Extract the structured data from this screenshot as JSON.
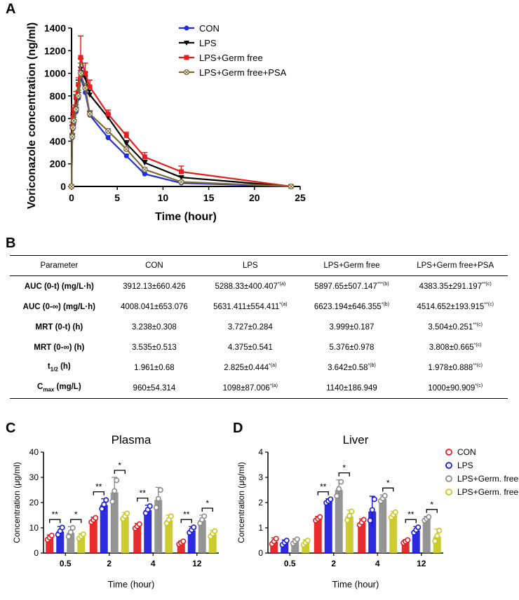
{
  "panels": {
    "a": "A",
    "b": "B",
    "c": "C",
    "d": "D"
  },
  "chart_data": [
    {
      "type": "line",
      "panel": "A",
      "xlabel": "Time (hour)",
      "ylabel": "Voriconazole concentration (ng/ml)",
      "xlim": [
        0,
        25
      ],
      "ylim": [
        0,
        1400
      ],
      "xticks": [
        "0",
        "5",
        "10",
        "15",
        "20",
        "25"
      ],
      "yticks": [
        "0",
        "200",
        "400",
        "600",
        "800",
        "1000",
        "1200",
        "1400"
      ],
      "x": [
        0,
        0.083,
        0.167,
        0.25,
        0.5,
        0.75,
        1,
        1.5,
        2,
        4,
        6,
        8,
        12,
        24
      ],
      "series": [
        {
          "name": "CON",
          "color": "#1f2ee0",
          "marker": "circle",
          "values": [
            0,
            430,
            510,
            560,
            660,
            780,
            970,
            830,
            630,
            430,
            270,
            110,
            30,
            0
          ],
          "err_up": [
            0,
            30,
            30,
            30,
            40,
            50,
            55,
            40,
            30,
            20,
            15,
            10,
            5,
            0
          ]
        },
        {
          "name": "LPS",
          "color": "#000000",
          "marker": "triangle-down",
          "values": [
            0,
            500,
            590,
            650,
            760,
            880,
            1040,
            960,
            810,
            610,
            380,
            210,
            80,
            0
          ],
          "err_up": [
            0,
            40,
            40,
            40,
            50,
            60,
            90,
            50,
            40,
            30,
            25,
            20,
            15,
            0
          ]
        },
        {
          "name": "LPS+Germ free",
          "color": "#e81c1c",
          "marker": "square",
          "values": [
            0,
            530,
            610,
            680,
            790,
            900,
            1140,
            1000,
            880,
            640,
            450,
            260,
            130,
            0
          ],
          "err_up": [
            0,
            40,
            40,
            40,
            50,
            60,
            190,
            90,
            60,
            35,
            30,
            40,
            50,
            0
          ]
        },
        {
          "name": "LPS+Germ free+PSA",
          "color": "#7a6a33",
          "marker": "circle-cross",
          "values": [
            0,
            440,
            520,
            580,
            680,
            800,
            1000,
            870,
            640,
            490,
            330,
            150,
            40,
            0
          ],
          "err_up": [
            0,
            30,
            30,
            30,
            40,
            50,
            90,
            40,
            30,
            20,
            20,
            15,
            10,
            0
          ]
        }
      ]
    },
    {
      "type": "bar",
      "panel": "C",
      "title": "Plasma",
      "xlabel": "Time (hour)",
      "ylabel": "Concentration (μg/ml)",
      "ylim": [
        0,
        40
      ],
      "yticks": [
        "0",
        "10",
        "20",
        "30",
        "40"
      ],
      "categories": [
        "0.5",
        "2",
        "4",
        "12"
      ],
      "series": [
        {
          "name": "CON",
          "color": "#e41a1c",
          "values": [
            6,
            13,
            10.5,
            4
          ],
          "err": [
            1.2,
            1.2,
            1.2,
            0.8
          ]
        },
        {
          "name": "LPS",
          "color": "#1a1adb",
          "values": [
            8.5,
            19,
            17,
            9
          ],
          "err": [
            2,
            2.5,
            2,
            1.5
          ]
        },
        {
          "name": "LPS+Germ. free",
          "color": "#8c8c8c",
          "values": [
            8,
            24,
            21,
            13
          ],
          "err": [
            2.5,
            6,
            5,
            2
          ]
        },
        {
          "name": "LPS+Germ. free+PSA",
          "color": "#c8c81e",
          "values": [
            6.5,
            14.5,
            13,
            7.5
          ],
          "err": [
            1.2,
            1.5,
            2,
            1.5
          ]
        }
      ],
      "significance": [
        {
          "category": "0.5",
          "pair": [
            0,
            1
          ],
          "label": "**"
        },
        {
          "category": "0.5",
          "pair": [
            2,
            3
          ],
          "label": "*"
        },
        {
          "category": "2",
          "pair": [
            0,
            1
          ],
          "label": "**"
        },
        {
          "category": "2",
          "pair": [
            2,
            3
          ],
          "label": "*"
        },
        {
          "category": "4",
          "pair": [
            0,
            1
          ],
          "label": "**"
        },
        {
          "category": "12",
          "pair": [
            0,
            1
          ],
          "label": "**"
        },
        {
          "category": "12",
          "pair": [
            2,
            3
          ],
          "label": "*"
        }
      ]
    },
    {
      "type": "bar",
      "panel": "D",
      "title": "Liver",
      "xlabel": "Time (hour)",
      "ylabel": "Concentration (μg/ml)",
      "ylim": [
        0,
        4
      ],
      "yticks": [
        "0",
        "1",
        "2",
        "3",
        "4"
      ],
      "categories": [
        "0.5",
        "2",
        "4",
        "12"
      ],
      "series": [
        {
          "name": "CON",
          "color": "#e41a1c",
          "values": [
            0.45,
            1.35,
            1.2,
            0.45
          ],
          "err": [
            0.15,
            0.1,
            0.15,
            0.08
          ]
        },
        {
          "name": "LPS",
          "color": "#1a1adb",
          "values": [
            0.4,
            2.05,
            1.65,
            0.9
          ],
          "err": [
            0.12,
            0.1,
            0.6,
            0.15
          ]
        },
        {
          "name": "LPS+Germ. free",
          "color": "#8c8c8c",
          "values": [
            0.45,
            2.5,
            2.15,
            1.35
          ],
          "err": [
            0.12,
            0.4,
            0.15,
            0.1
          ]
        },
        {
          "name": "LPS+Germ. free+PSA",
          "color": "#c8c81e",
          "values": [
            0.4,
            1.45,
            1.5,
            0.65
          ],
          "err": [
            0.12,
            0.25,
            0.15,
            0.3
          ]
        }
      ],
      "significance": [
        {
          "category": "2",
          "pair": [
            0,
            1
          ],
          "label": "**"
        },
        {
          "category": "2",
          "pair": [
            2,
            3
          ],
          "label": "*"
        },
        {
          "category": "4",
          "pair": [
            2,
            3
          ],
          "label": "*"
        },
        {
          "category": "12",
          "pair": [
            0,
            1
          ],
          "label": "**"
        },
        {
          "category": "12",
          "pair": [
            2,
            3
          ],
          "label": "*"
        }
      ]
    }
  ],
  "table": {
    "headers": [
      "Parameter",
      "CON",
      "LPS",
      "LPS+Germ free",
      "LPS+Germ free+PSA"
    ],
    "rows": [
      {
        "param": "AUC (0-t) (mg/L·h)",
        "cells": [
          {
            "val": "3912.13±660.426",
            "sup": ""
          },
          {
            "val": "5288.33±400.407",
            "sup": "*(a)"
          },
          {
            "val": "5897.65±507.147",
            "sup": "***(b)"
          },
          {
            "val": "4383.35±291.197",
            "sup": "**(c)"
          }
        ]
      },
      {
        "param": "AUC (0-∞) (mg/L·h)",
        "cells": [
          {
            "val": "4008.041±653.076",
            "sup": ""
          },
          {
            "val": "5631.411±554.411",
            "sup": "*(a)"
          },
          {
            "val": "6623.194±646.355",
            "sup": "*(b)"
          },
          {
            "val": "4514.652±193.915",
            "sup": "**(c)"
          }
        ]
      },
      {
        "param": "MRT (0-t) (h)",
        "cells": [
          {
            "val": "3.238±0.308",
            "sup": ""
          },
          {
            "val": "3.727±0.284",
            "sup": ""
          },
          {
            "val": "3.999±0.187",
            "sup": ""
          },
          {
            "val": "3.504±0.251",
            "sup": "**(c)"
          }
        ]
      },
      {
        "param": "MRT (0-∞) (h)",
        "cells": [
          {
            "val": "3.535±0.513",
            "sup": ""
          },
          {
            "val": "4.375±0.541",
            "sup": ""
          },
          {
            "val": "5.376±0.978",
            "sup": ""
          },
          {
            "val": "3.808±0.665",
            "sup": "*(c)"
          }
        ]
      },
      {
        "param_main": "t",
        "param_sub": "1/2",
        "param_rest": " (h)",
        "cells": [
          {
            "val": "1.961±0.68",
            "sup": ""
          },
          {
            "val": "2.825±0.444",
            "sup": "*(a)"
          },
          {
            "val": "3.642±0.58",
            "sup": "*(b)"
          },
          {
            "val": "1.978±0.888",
            "sup": "**(c)"
          }
        ]
      },
      {
        "param_main": "C",
        "param_sub": "max",
        "param_rest": " (mg/L)",
        "cells": [
          {
            "val": "960±54.314",
            "sup": ""
          },
          {
            "val": "1098±87.006",
            "sup": "*(a)"
          },
          {
            "val": "1140±186.949",
            "sup": ""
          },
          {
            "val": "1000±90.909",
            "sup": "*(c)"
          }
        ]
      }
    ]
  }
}
